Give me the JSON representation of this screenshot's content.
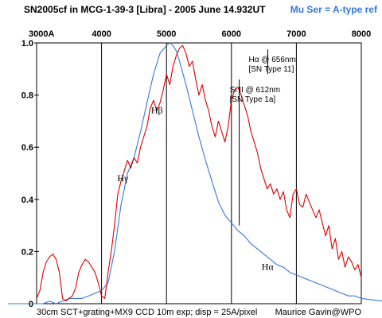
{
  "chart_data": {
    "type": "line",
    "title": "SN2005cf in MCG-1-39-3 [Libra] - 2005 June 14.932UT",
    "reference_label": "Mu Ser = A-type ref",
    "footer_left": "30cm SCT+grating+MX9 CCD 10m exp;  disp = 25A/pixel",
    "footer_right": "Maurice Gavin@WPO",
    "xlim": [
      3000,
      8000
    ],
    "ylim": [
      0,
      1.0
    ],
    "x_ticks": [
      {
        "value": 3000,
        "label": "3000A"
      },
      {
        "value": 4000,
        "label": "4000"
      },
      {
        "value": 5000,
        "label": "5000"
      },
      {
        "value": 6000,
        "label": "6000"
      },
      {
        "value": 7000,
        "label": "7000"
      },
      {
        "value": 8000,
        "label": "8000"
      }
    ],
    "y_ticks": [
      {
        "value": 0,
        "label": "0"
      },
      {
        "value": 0.2,
        "label": "0.2"
      },
      {
        "value": 0.4,
        "label": "0.4"
      },
      {
        "value": 0.6,
        "label": "0.6"
      },
      {
        "value": 0.8,
        "label": "0.8"
      },
      {
        "value": 1.0,
        "label": "1.0"
      }
    ],
    "grid": "vertical",
    "series": [
      {
        "color": "#dd0000",
        "x": [
          3000,
          3050,
          3100,
          3150,
          3200,
          3250,
          3300,
          3350,
          3400,
          3450,
          3500,
          3550,
          3600,
          3650,
          3700,
          3750,
          3800,
          3850,
          3900,
          3950,
          4000,
          4050,
          4100,
          4150,
          4200,
          4250,
          4300,
          4350,
          4400,
          4450,
          4500,
          4550,
          4600,
          4650,
          4700,
          4750,
          4800,
          4850,
          4900,
          4950,
          5000,
          5050,
          5100,
          5150,
          5200,
          5250,
          5300,
          5350,
          5400,
          5450,
          5500,
          5550,
          5600,
          5650,
          5700,
          5750,
          5800,
          5850,
          5900,
          5950,
          6000,
          6050,
          6100,
          6150,
          6200,
          6250,
          6300,
          6350,
          6400,
          6450,
          6500,
          6550,
          6600,
          6650,
          6700,
          6750,
          6800,
          6850,
          6900,
          6950,
          7000,
          7050,
          7100,
          7150,
          7200,
          7250,
          7300,
          7350,
          7400,
          7450,
          7500,
          7550,
          7600,
          7650,
          7700,
          7750,
          7800,
          7850,
          7900,
          7950,
          8000
        ],
        "values": [
          0.02,
          0.05,
          0.12,
          0.16,
          0.18,
          0.19,
          0.17,
          0.12,
          0.02,
          0.01,
          0.02,
          0.03,
          0.06,
          0.12,
          0.15,
          0.17,
          0.16,
          0.14,
          0.12,
          0.08,
          0.03,
          0.02,
          0.12,
          0.2,
          0.3,
          0.42,
          0.47,
          0.51,
          0.55,
          0.52,
          0.56,
          0.54,
          0.6,
          0.64,
          0.68,
          0.75,
          0.78,
          0.74,
          0.77,
          0.82,
          0.88,
          0.84,
          0.91,
          0.95,
          0.98,
          0.99,
          0.96,
          0.91,
          0.93,
          0.86,
          0.8,
          0.84,
          0.78,
          0.74,
          0.68,
          0.64,
          0.7,
          0.66,
          0.62,
          0.68,
          0.78,
          0.82,
          0.83,
          0.8,
          0.76,
          0.72,
          0.66,
          0.62,
          0.58,
          0.52,
          0.48,
          0.44,
          0.46,
          0.42,
          0.44,
          0.4,
          0.43,
          0.36,
          0.33,
          0.42,
          0.44,
          0.38,
          0.37,
          0.42,
          0.39,
          0.36,
          0.33,
          0.36,
          0.31,
          0.26,
          0.3,
          0.21,
          0.25,
          0.17,
          0.2,
          0.14,
          0.18,
          0.16,
          0.13,
          0.15,
          0.1
        ]
      },
      {
        "name": "Mu Ser = A-type ref",
        "color": "#3377dd",
        "x": [
          3000,
          3100,
          3200,
          3300,
          3400,
          3500,
          3600,
          3700,
          3800,
          3900,
          4000,
          4100,
          4200,
          4300,
          4400,
          4500,
          4600,
          4700,
          4800,
          4900,
          5000,
          5050,
          5100,
          5150,
          5200,
          5300,
          5400,
          5500,
          5600,
          5700,
          5800,
          5900,
          6000,
          6100,
          6200,
          6300,
          6400,
          6500,
          6600,
          6700,
          6800,
          6900,
          7000,
          7100,
          7200,
          7300,
          7400,
          7500,
          7600,
          7700,
          7800,
          7900,
          8000
        ],
        "values": [
          0.0,
          0.0,
          0.01,
          0.0,
          0.01,
          0.02,
          0.02,
          0.02,
          0.03,
          0.04,
          0.05,
          0.08,
          0.2,
          0.38,
          0.5,
          0.56,
          0.66,
          0.77,
          0.88,
          0.96,
          0.99,
          1.0,
          0.99,
          0.97,
          0.93,
          0.84,
          0.74,
          0.64,
          0.55,
          0.47,
          0.39,
          0.34,
          0.31,
          0.28,
          0.26,
          0.23,
          0.21,
          0.19,
          0.17,
          0.15,
          0.14,
          0.12,
          0.11,
          0.1,
          0.09,
          0.08,
          0.07,
          0.06,
          0.05,
          0.04,
          0.03,
          0.03,
          0.02
        ]
      }
    ],
    "annotations": [
      {
        "text": "Hα @ 656nm",
        "text2": "[SN Type 11]",
        "x": 6560,
        "y_top": 0.975,
        "y_bottom": 0.88
      },
      {
        "text": "Si II @ 612nm",
        "text2": "[SN Type 1a]",
        "x": 6120,
        "y_top": 0.86,
        "y_bottom": 0.3
      },
      {
        "text": "Hβ",
        "x": 4861,
        "y": 0.73
      },
      {
        "text": "Hγ",
        "x": 4340,
        "y": 0.47
      },
      {
        "text": "Hα",
        "x": 6563,
        "y": 0.13
      }
    ]
  }
}
